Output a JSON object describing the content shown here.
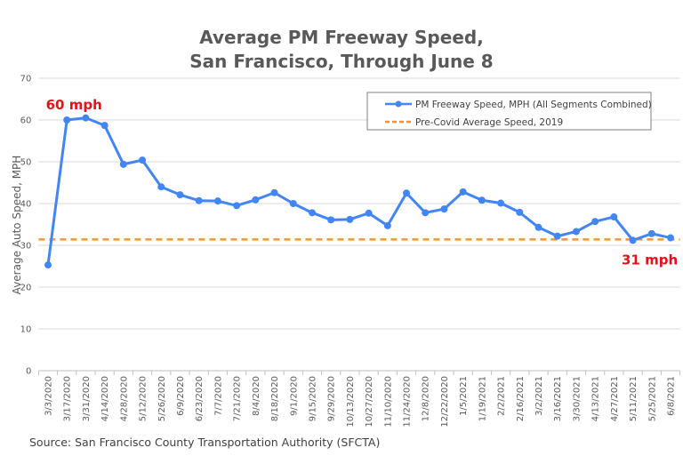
{
  "chart_data": {
    "type": "line",
    "title": [
      "Average PM Freeway Speed,",
      "San Francisco, Through June 8"
    ],
    "xlabel": "",
    "ylabel": "Average Auto Speed, MPH",
    "ylim": [
      0,
      70
    ],
    "yticks": [
      0,
      10,
      20,
      30,
      40,
      50,
      60,
      70
    ],
    "grid": true,
    "legend_position": "top-right",
    "categories": [
      "3/3/2020",
      "3/17/2020",
      "3/31/2020",
      "4/14/2020",
      "4/28/2020",
      "5/12/2020",
      "5/26/2020",
      "6/9/2020",
      "6/23/2020",
      "7/7/2020",
      "7/21/2020",
      "8/4/2020",
      "8/18/2020",
      "9/1/2020",
      "9/15/2020",
      "9/29/2020",
      "10/13/2020",
      "10/27/2020",
      "11/10/2020",
      "11/24/2020",
      "12/8/2020",
      "12/22/2020",
      "1/5/2021",
      "1/19/2021",
      "2/2/2021",
      "2/16/2021",
      "3/2/2021",
      "3/16/2021",
      "3/30/2021",
      "4/13/2021",
      "4/27/2021",
      "5/11/2021",
      "5/25/2021",
      "6/8/2021"
    ],
    "series": [
      {
        "name": "PM Freeway Speed, MPH (All Segments Combined)",
        "color": "#4285f4",
        "style": "solid-with-markers",
        "values": [
          25.3,
          60.0,
          60.5,
          58.7,
          49.4,
          50.4,
          44.0,
          42.1,
          40.7,
          40.6,
          39.5,
          40.9,
          42.6,
          40.0,
          37.8,
          36.1,
          36.2,
          37.7,
          34.7,
          42.5,
          37.8,
          38.7,
          42.8,
          40.8,
          40.1,
          37.9,
          34.3,
          32.2,
          33.3,
          35.7,
          36.8,
          31.2,
          32.8,
          31.8
        ]
      },
      {
        "name": "Pre-Covid Average Speed, 2019",
        "color": "#f0953b",
        "style": "dashed",
        "constant": 31.4
      }
    ],
    "annotations": [
      {
        "text": "60 mph",
        "category": "3/17/2020",
        "value": 60.0,
        "position": "above",
        "color": "#e8101a"
      },
      {
        "text": "31 mph",
        "category": "5/11/2021",
        "value": 31.2,
        "position": "below",
        "color": "#e8101a"
      }
    ],
    "source": "Source: San Francisco County Transportation Authority (SFCTA)"
  }
}
